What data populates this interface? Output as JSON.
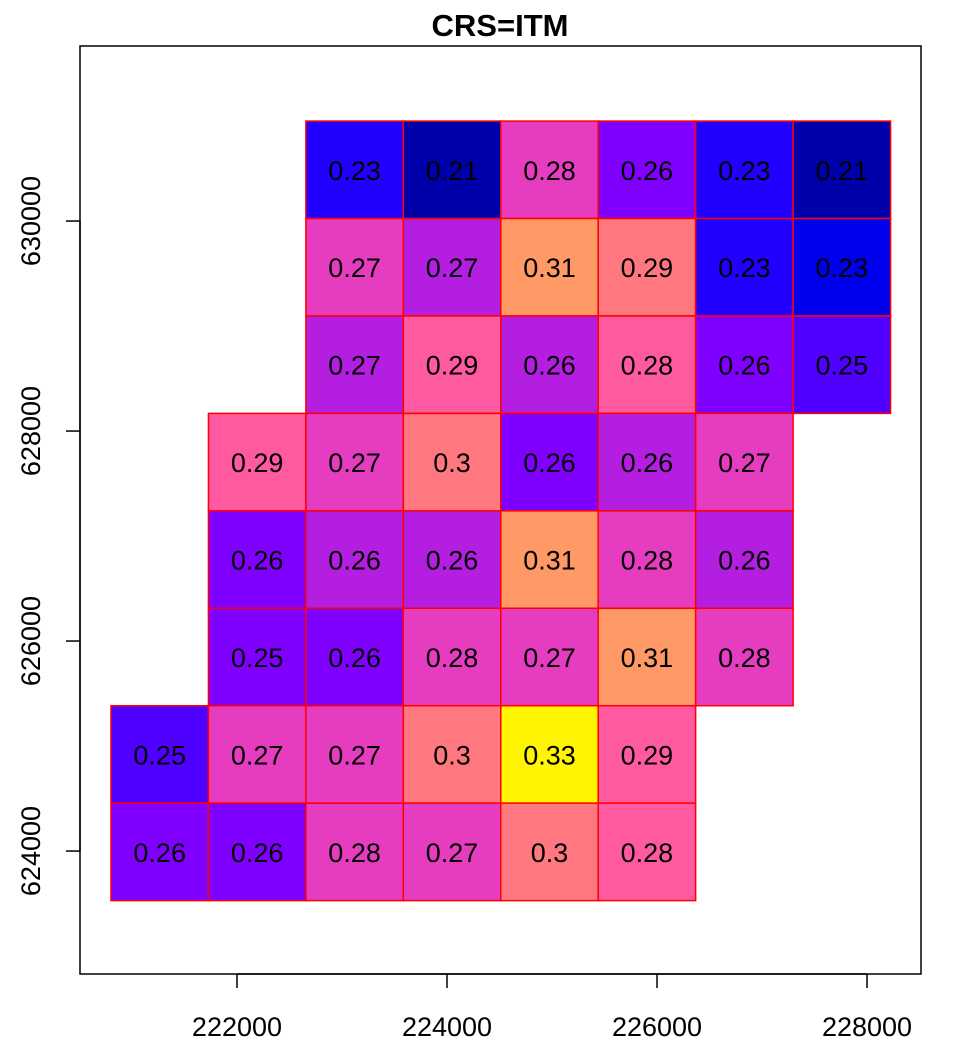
{
  "chart_data": {
    "type": "heatmap",
    "title": "CRS=ITM",
    "xlabel": "",
    "ylabel": "",
    "xlim": [
      220505,
      228514
    ],
    "ylim": [
      622829,
      631667
    ],
    "x_ticks": [
      222000,
      224000,
      226000,
      228000
    ],
    "y_ticks": [
      624000,
      626000,
      628000,
      630000
    ],
    "x_tick_labels": [
      "222000",
      "224000",
      "226000",
      "228000"
    ],
    "y_tick_labels": [
      "624000",
      "626000",
      "628000",
      "630000"
    ],
    "grid": false,
    "cell_border_color": "#FF0000",
    "grid_origin": {
      "x_left": 220800,
      "y_top": 630952
    },
    "cell_size": 928,
    "values": [
      [
        null,
        null,
        "0.23",
        "0.21",
        "0.28",
        "0.26",
        "0.23",
        "0.21"
      ],
      [
        null,
        null,
        "0.27",
        "0.27",
        "0.31",
        "0.29",
        "0.23",
        "0.23"
      ],
      [
        null,
        null,
        "0.27",
        "0.29",
        "0.26",
        "0.28",
        "0.26",
        "0.25"
      ],
      [
        null,
        "0.29",
        "0.27",
        "0.3",
        "0.26",
        "0.26",
        "0.27",
        null
      ],
      [
        null,
        "0.26",
        "0.26",
        "0.26",
        "0.31",
        "0.28",
        "0.26",
        null
      ],
      [
        null,
        "0.25",
        "0.26",
        "0.28",
        "0.27",
        "0.31",
        "0.28",
        null
      ],
      [
        "0.25",
        "0.27",
        "0.27",
        "0.3",
        "0.33",
        "0.29",
        null,
        null
      ],
      [
        "0.26",
        "0.26",
        "0.28",
        "0.27",
        "0.3",
        "0.28",
        null,
        null
      ]
    ],
    "colors": [
      [
        null,
        null,
        "#2200FF",
        "#0000AA",
        "#E63CC0",
        "#8000FF",
        "#2200FF",
        "#0000AA"
      ],
      [
        null,
        null,
        "#E63CC0",
        "#B41EE0",
        "#FF9966",
        "#FF7880",
        "#2200FF",
        "#0000EE"
      ],
      [
        null,
        null,
        "#B41EE0",
        "#FF5AA0",
        "#B41EE0",
        "#FF5AA0",
        "#8000FF",
        "#5000FF"
      ],
      [
        null,
        "#FF5AA0",
        "#E63CC0",
        "#FF7880",
        "#8000FF",
        "#B41EE0",
        "#E63CC0",
        null
      ],
      [
        null,
        "#8000FF",
        "#B41EE0",
        "#B41EE0",
        "#FF9966",
        "#E63CC0",
        "#B41EE0",
        null
      ],
      [
        null,
        "#8000FF",
        "#8000FF",
        "#E63CC0",
        "#E63CC0",
        "#FF9966",
        "#E63CC0",
        null
      ],
      [
        "#5000FF",
        "#E63CC0",
        "#E63CC0",
        "#FF7880",
        "#FFF500",
        "#FF5AA0",
        null,
        null
      ],
      [
        "#8000FF",
        "#8000FF",
        "#E63CC0",
        "#E63CC0",
        "#FF7880",
        "#FF5AA0",
        null,
        null
      ]
    ]
  }
}
